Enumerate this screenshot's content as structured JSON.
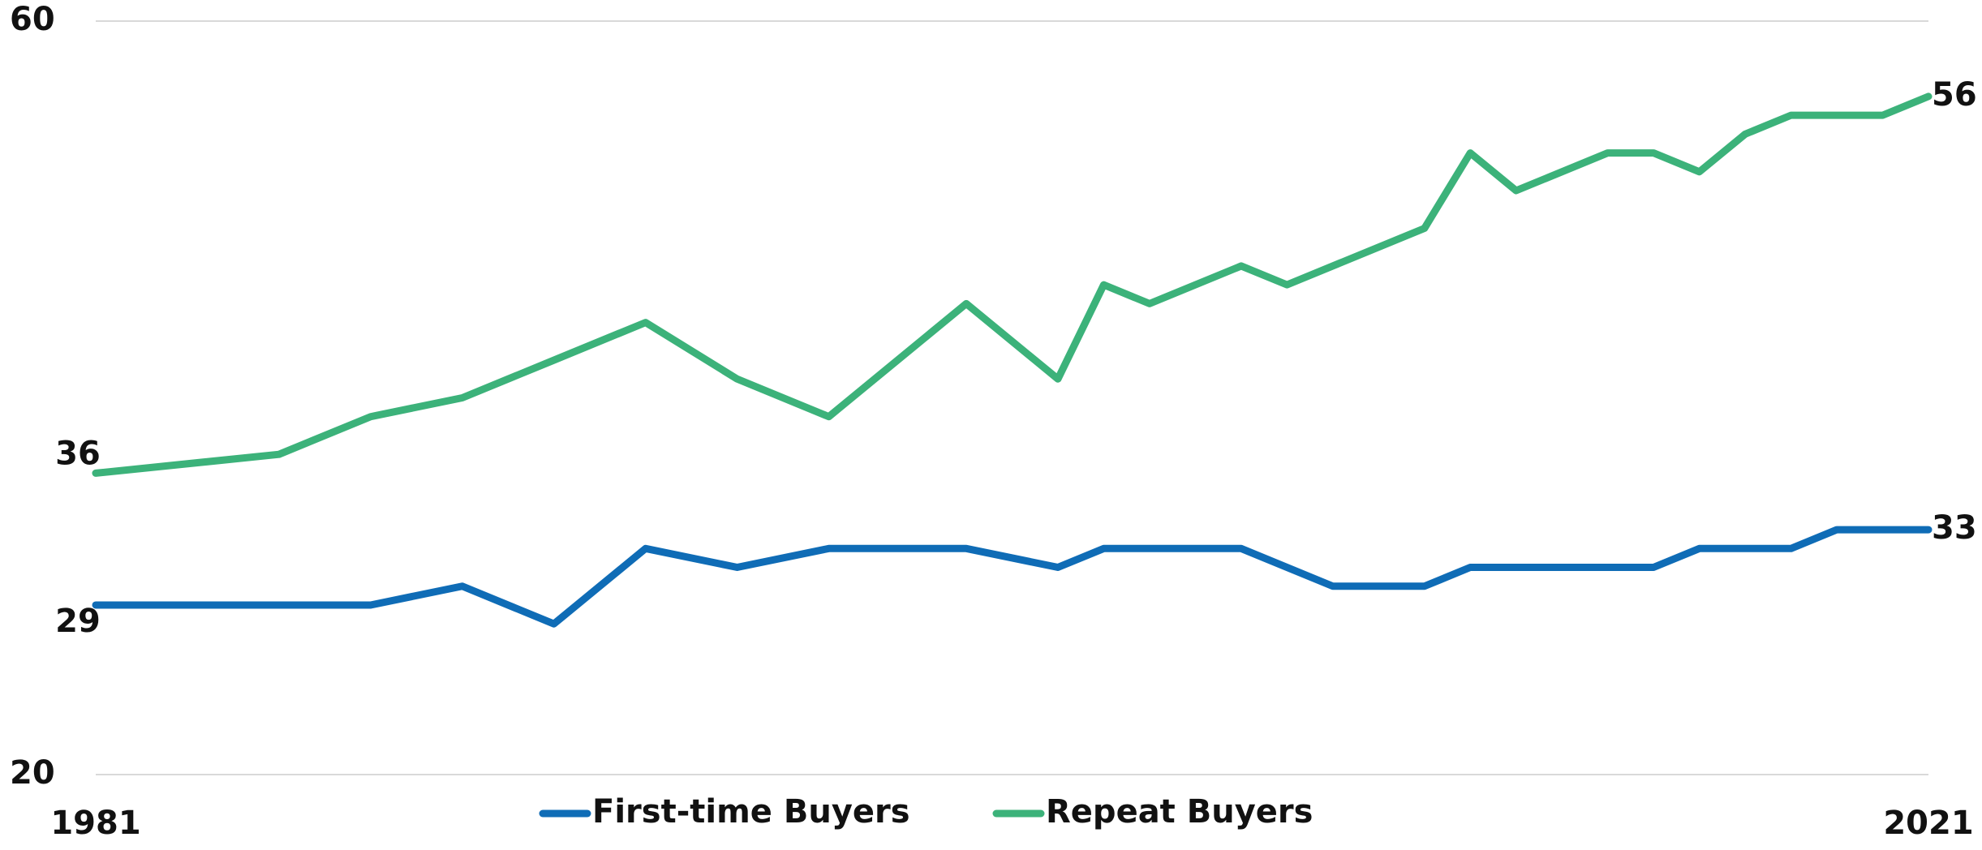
{
  "chart_data": {
    "type": "line",
    "xticks": [
      1981,
      2021
    ],
    "xlim": [
      1981,
      2021
    ],
    "ylim": [
      20,
      60
    ],
    "yticks": [
      20,
      60
    ],
    "grid": true,
    "legend": "bottom",
    "series": [
      {
        "name": "First-time Buyers",
        "color": "#0f6cb6",
        "x": [
          1981,
          1987,
          1989,
          1991,
          1993,
          1995,
          1997,
          2000,
          2002,
          2003,
          2006,
          2008,
          2010,
          2011,
          2015,
          2016,
          2018,
          2019,
          2021
        ],
        "values": [
          29,
          29,
          30,
          28,
          32,
          31,
          32,
          32,
          31,
          32,
          32,
          30,
          30,
          31,
          31,
          32,
          32,
          33,
          33
        ]
      },
      {
        "name": "Repeat Buyers",
        "color": "#3cb27a",
        "x": [
          1981,
          1985,
          1987,
          1989,
          1991,
          1993,
          1995,
          1997,
          2000,
          2002,
          2003,
          2004,
          2006,
          2007,
          2010,
          2011,
          2012,
          2014,
          2015,
          2016,
          2017,
          2018,
          2020,
          2021
        ],
        "values": [
          36,
          37,
          39,
          40,
          42,
          44,
          41,
          39,
          45,
          41,
          46,
          45,
          47,
          46,
          49,
          53,
          51,
          53,
          53,
          52,
          54,
          55,
          55,
          56
        ]
      }
    ]
  }
}
